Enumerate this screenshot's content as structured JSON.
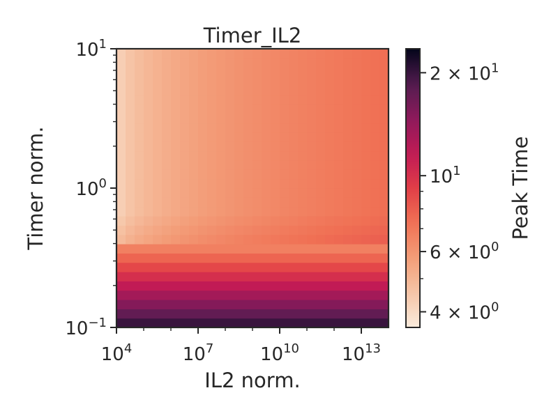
{
  "chart_data": {
    "type": "heatmap",
    "title": "Timer_IL2",
    "xlabel": "IL2 norm.",
    "ylabel": "Timer norm.",
    "colorbar_label": "Peak Time",
    "x_scale": "log",
    "y_scale": "log",
    "xlim": [
      10000,
      100000000000000.0
    ],
    "ylim": [
      0.1,
      10
    ],
    "x_ticks": [
      {
        "value": 10000,
        "base": "10",
        "exp": "4"
      },
      {
        "value": 10000000,
        "base": "10",
        "exp": "7"
      },
      {
        "value": 10000000000,
        "base": "10",
        "exp": "10"
      },
      {
        "value": 10000000000000,
        "base": "10",
        "exp": "13"
      }
    ],
    "y_ticks": [
      {
        "value": 0.1,
        "base": "10",
        "exp": "−1"
      },
      {
        "value": 1,
        "base": "10",
        "exp": "0"
      },
      {
        "value": 10,
        "base": "10",
        "exp": "1"
      }
    ],
    "colorbar_scale": "log",
    "colorbar_range": [
      3.6,
      23.5
    ],
    "colorbar_ticks": [
      {
        "value": 4,
        "prefix": "4 × ",
        "base": "10",
        "exp": "0"
      },
      {
        "value": 6,
        "prefix": "6 × ",
        "base": "10",
        "exp": "0"
      },
      {
        "value": 10,
        "prefix": "",
        "base": "10",
        "exp": "1"
      },
      {
        "value": 20,
        "prefix": "2 × ",
        "base": "10",
        "exp": "1"
      }
    ],
    "colormap": "rocket_r",
    "grid": false,
    "z_description": "Peak Time as a function of IL2 norm. (x, log) and Timer norm. (y, log)"
  }
}
